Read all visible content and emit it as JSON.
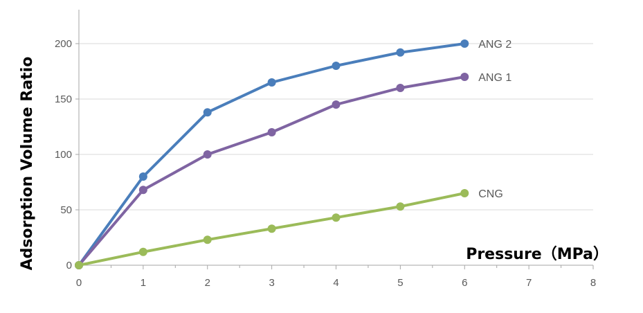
{
  "chart_data": {
    "type": "line",
    "title": "",
    "xlabel": "Pressure（MPa）",
    "ylabel": "Adsorption Volume Ratio",
    "xlim": [
      0,
      8
    ],
    "ylim": [
      0,
      200
    ],
    "x_ticks": [
      "0",
      "1",
      "2",
      "3",
      "4",
      "5",
      "6",
      "7",
      "8"
    ],
    "y_ticks": [
      "0",
      "50",
      "100",
      "150",
      "200"
    ],
    "grid": {
      "horizontal": true,
      "vertical": false
    },
    "legend": "labels at line ends",
    "x": [
      0,
      1,
      2,
      3,
      4,
      5,
      6
    ],
    "series": [
      {
        "name": "ANG 2",
        "color": "#4a7ebb",
        "values": [
          0,
          80,
          138,
          165,
          180,
          192,
          200
        ]
      },
      {
        "name": "ANG 1",
        "color": "#7f64a2",
        "values": [
          0,
          68,
          100,
          120,
          145,
          160,
          170
        ]
      },
      {
        "name": "CNG",
        "color": "#9bbb59",
        "values": [
          0,
          12,
          23,
          33,
          43,
          53,
          65
        ]
      }
    ]
  }
}
